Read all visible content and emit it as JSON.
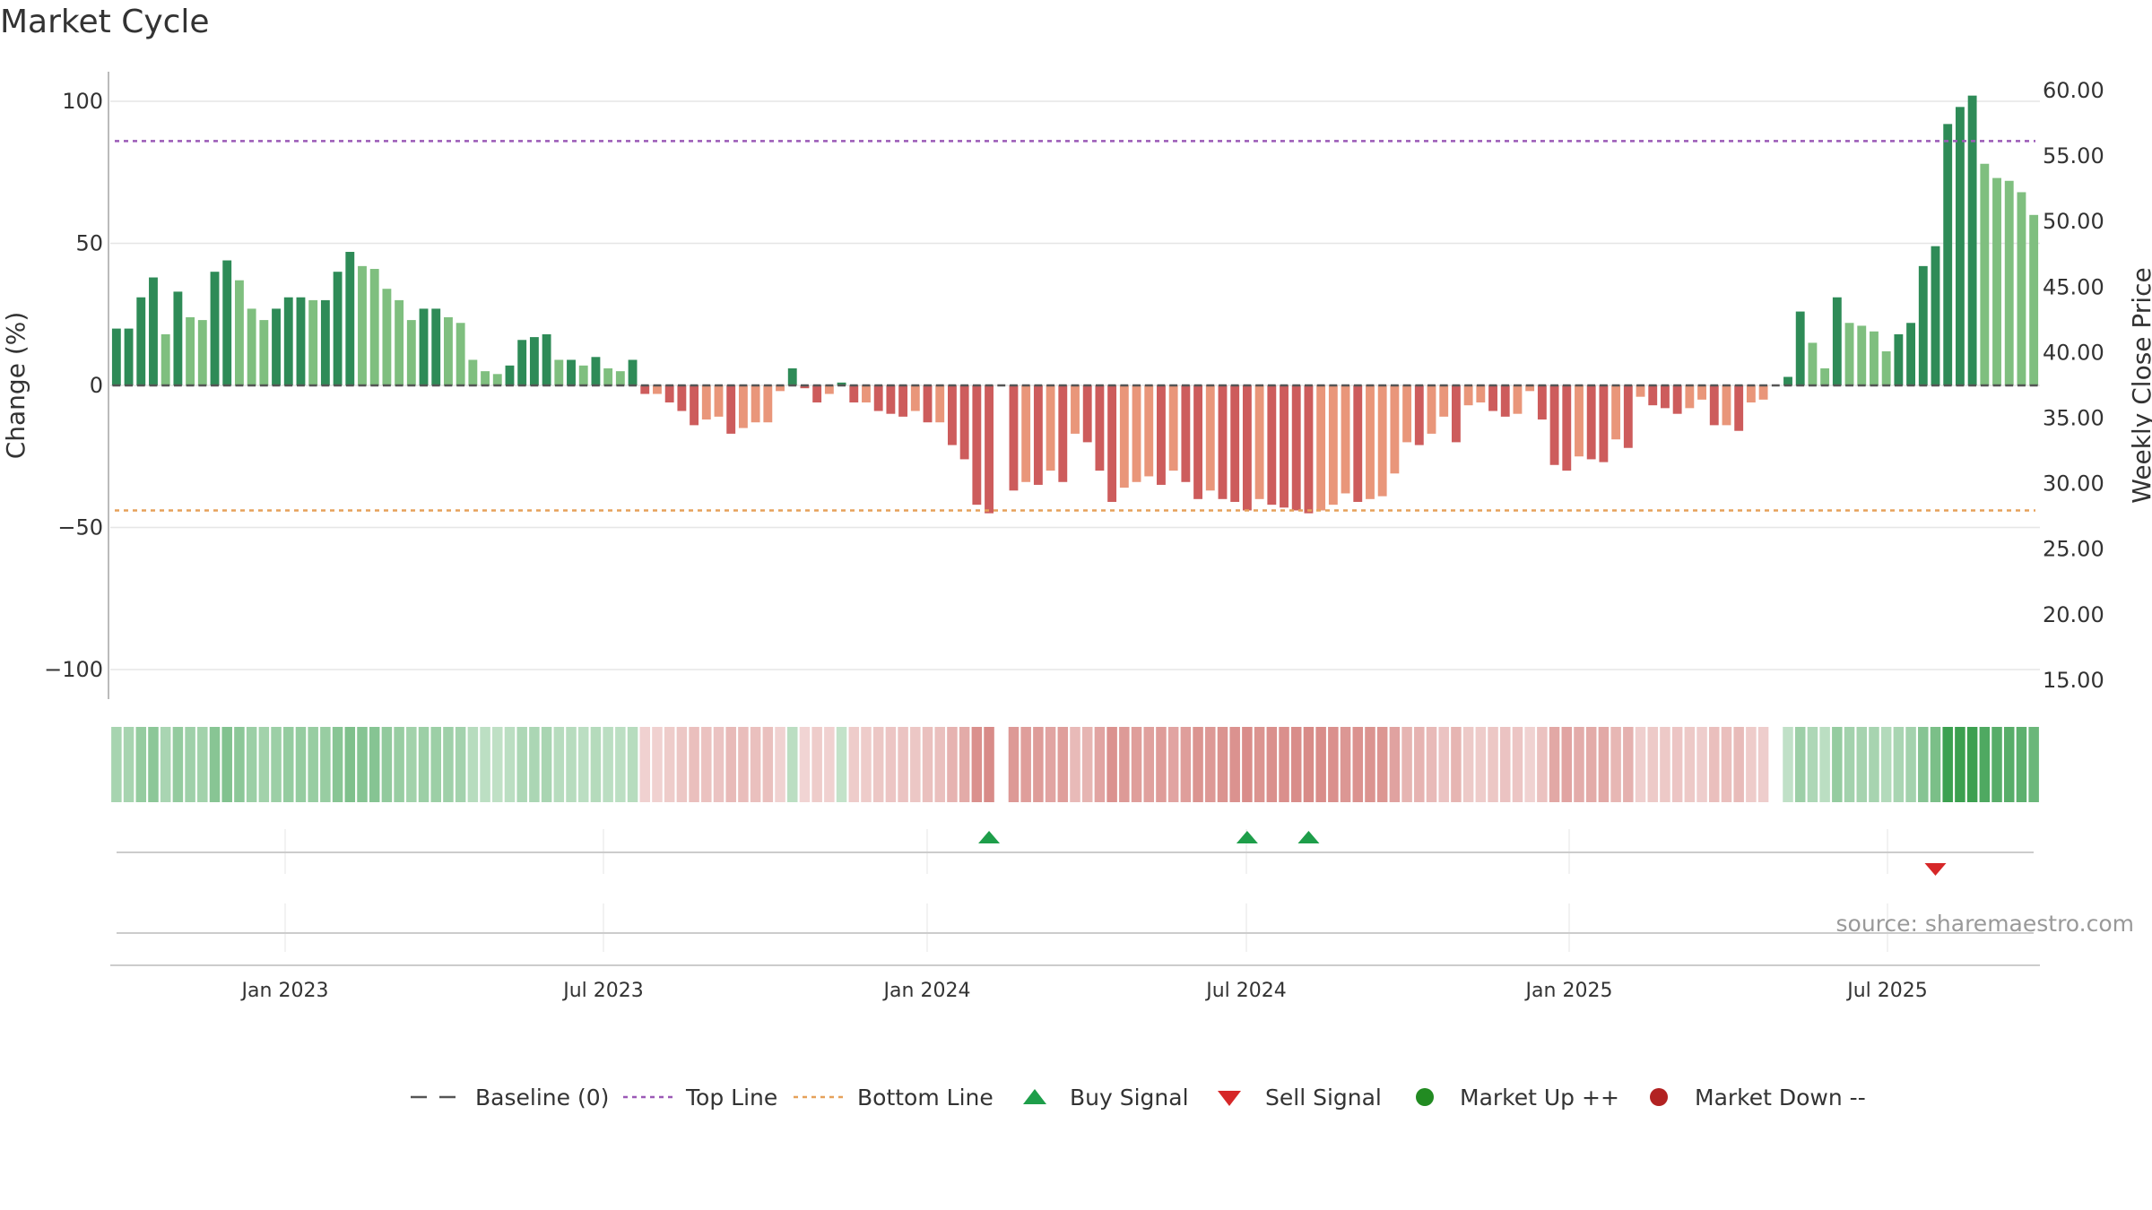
{
  "chart_data": {
    "type": "bar",
    "title": "Market Cycle",
    "ylabel_left": "Change (%)",
    "ylabel_right": "Weekly Close Price",
    "y_left_range": [
      -110,
      110
    ],
    "y_left_ticks": [
      100,
      50,
      0,
      -50,
      -100
    ],
    "y_left_tick_labels": [
      "100",
      "50",
      "0",
      "−50",
      "−100"
    ],
    "y_right_ticks": [
      "60.00",
      "55.00",
      "50.00",
      "45.00",
      "40.00",
      "35.00",
      "30.00",
      "25.00",
      "20.00",
      "15.00"
    ],
    "x_tick_labels": [
      "Jan 2023",
      "Jul 2023",
      "Jan 2024",
      "Jul 2024",
      "Jan 2025",
      "Jul 2025"
    ],
    "top_line": 86,
    "bottom_line": -44,
    "values": [
      20,
      20,
      31,
      38,
      18,
      33,
      24,
      23,
      40,
      44,
      37,
      27,
      23,
      27,
      31,
      31,
      30,
      30,
      40,
      47,
      42,
      41,
      34,
      30,
      23,
      27,
      27,
      24,
      22,
      9,
      5,
      4,
      7,
      16,
      17,
      18,
      9,
      9,
      7,
      10,
      6,
      5,
      9,
      -3,
      -3,
      -6,
      -9,
      -14,
      -12,
      -11,
      -17,
      -15,
      -13,
      -13,
      -2,
      6,
      -1,
      -6,
      -3,
      1,
      -6,
      -6,
      -9,
      -10,
      -11,
      -9,
      -13,
      -13,
      -21,
      -26,
      -42,
      -45,
      0,
      -37,
      -34,
      -35,
      -30,
      -34,
      -17,
      -20,
      -30,
      -41,
      -36,
      -34,
      -32,
      -35,
      -30,
      -34,
      -40,
      -37,
      -40,
      -41,
      -44,
      -40,
      -42,
      -43,
      -44,
      -45,
      -44,
      -42,
      -38,
      -41,
      -40,
      -39,
      -31,
      -20,
      -21,
      -17,
      -11,
      -20,
      -7,
      -6,
      -9,
      -11,
      -10,
      -2,
      -12,
      -28,
      -30,
      -25,
      -26,
      -27,
      -19,
      -22,
      -4,
      -7,
      -8,
      -10,
      -8,
      -5,
      -14,
      -14,
      -16,
      -6,
      -5,
      0,
      3,
      26,
      15,
      6,
      31,
      22,
      21,
      19,
      12,
      18,
      22,
      42,
      49,
      92,
      98,
      102,
      78,
      73,
      72,
      68,
      60
    ],
    "buy_signal_indices": [
      71,
      92,
      97
    ],
    "sell_signal_indices": [
      148
    ],
    "source": "source: sharemaestro.com",
    "legend": [
      {
        "label": "Baseline (0)",
        "symbol": "dash"
      },
      {
        "label": "Top Line",
        "symbol": "dotted-purple"
      },
      {
        "label": "Bottom Line",
        "symbol": "dotted-orange"
      },
      {
        "label": "Buy Signal",
        "symbol": "triangle-up"
      },
      {
        "label": "Sell Signal",
        "symbol": "triangle-down"
      },
      {
        "label": "Market Up ++",
        "symbol": "circle-green"
      },
      {
        "label": "Market Down --",
        "symbol": "circle-red"
      }
    ],
    "colors": {
      "up_dark": "#2e8b57",
      "up_light": "#7fbf7f",
      "down_dark": "#cd5c5c",
      "down_light": "#e9967a",
      "top_line": "#9b59b6",
      "bottom_line": "#e6a15a",
      "buy": "#1e9e4a",
      "sell": "#d62728",
      "market_up": "#228b22",
      "market_down": "#b22222"
    }
  }
}
